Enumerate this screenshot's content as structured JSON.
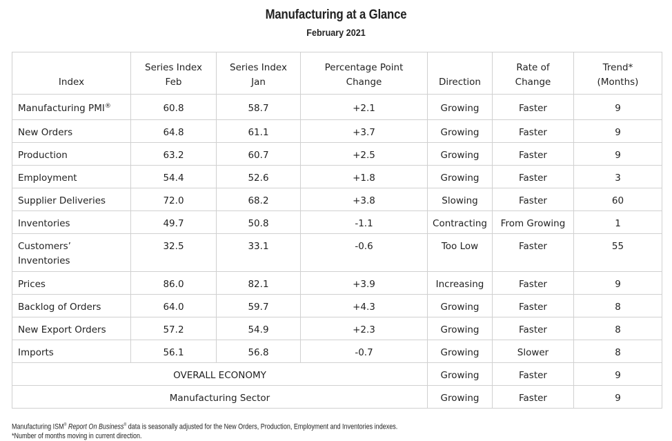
{
  "report": {
    "title": "Manufacturing at a Glance",
    "subtitle": "February 2021"
  },
  "table": {
    "headers": {
      "index": "Index",
      "feb_line1": "Series Index",
      "feb_line2": "Feb",
      "jan_line1": "Series Index",
      "jan_line2": "Jan",
      "change_line1": "Percentage Point",
      "change_line2": "Change",
      "direction": "Direction",
      "rate_line1": "Rate of",
      "rate_line2": "Change",
      "trend_line1": "Trend*",
      "trend_line2": "(Months)"
    },
    "rows": [
      {
        "index": "Manufacturing PMI",
        "index_mark": "®",
        "feb": "60.8",
        "jan": "58.7",
        "change": "+2.1",
        "direction": "Growing",
        "rate": "Faster",
        "trend": "9"
      },
      {
        "index": "New Orders",
        "feb": "64.8",
        "jan": "61.1",
        "change": "+3.7",
        "direction": "Growing",
        "rate": "Faster",
        "trend": "9"
      },
      {
        "index": "Production",
        "feb": "63.2",
        "jan": "60.7",
        "change": "+2.5",
        "direction": "Growing",
        "rate": "Faster",
        "trend": "9"
      },
      {
        "index": "Employment",
        "feb": "54.4",
        "jan": "52.6",
        "change": "+1.8",
        "direction": "Growing",
        "rate": "Faster",
        "trend": "3"
      },
      {
        "index": "Supplier Deliveries",
        "feb": "72.0",
        "jan": "68.2",
        "change": "+3.8",
        "direction": "Slowing",
        "rate": "Faster",
        "trend": "60"
      },
      {
        "index": "Inventories",
        "feb": "49.7",
        "jan": "50.8",
        "change": "-1.1",
        "direction": "Contracting",
        "rate": "From Growing",
        "trend": "1"
      },
      {
        "index_line1": "Customers’",
        "index_line2": "Inventories",
        "feb": "32.5",
        "jan": "33.1",
        "change": "-0.6",
        "direction": "Too Low",
        "rate": "Faster",
        "trend": "55"
      },
      {
        "index": "Prices",
        "feb": "86.0",
        "jan": "82.1",
        "change": "+3.9",
        "direction": "Increasing",
        "rate": "Faster",
        "trend": "9"
      },
      {
        "index": "Backlog of Orders",
        "feb": "64.0",
        "jan": "59.7",
        "change": "+4.3",
        "direction": "Growing",
        "rate": "Faster",
        "trend": "8"
      },
      {
        "index": "New Export Orders",
        "feb": "57.2",
        "jan": "54.9",
        "change": "+2.3",
        "direction": "Growing",
        "rate": "Faster",
        "trend": "8"
      },
      {
        "index": "Imports",
        "feb": "56.1",
        "jan": "56.8",
        "change": "-0.7",
        "direction": "Growing",
        "rate": "Slower",
        "trend": "8"
      }
    ],
    "summary_rows": [
      {
        "label": "OVERALL ECONOMY",
        "direction": "Growing",
        "rate": "Faster",
        "trend": "9"
      },
      {
        "label": "Manufacturing Sector",
        "direction": "Growing",
        "rate": "Faster",
        "trend": "9"
      }
    ]
  },
  "footnotes": {
    "line1_pre": "Manufacturing ISM",
    "line1_mark1": "®",
    "line1_italic": "Report On Business",
    "line1_mark2": "®",
    "line1_post": "data is seasonally adjusted for the New Orders, Production, Employment and Inventories indexes.",
    "line2": "*Number of months moving in current direction."
  }
}
